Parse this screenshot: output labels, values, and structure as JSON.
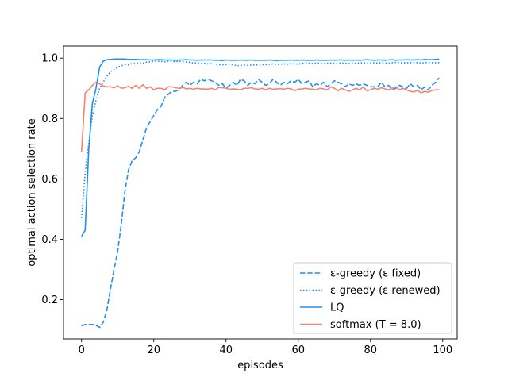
{
  "chart_data": {
    "type": "line",
    "title": "",
    "xlabel": "episodes",
    "ylabel": "optimal action selection rate",
    "xlim": [
      -5,
      104
    ],
    "ylim": [
      0.07,
      1.04
    ],
    "xticks": [
      0,
      20,
      40,
      60,
      80,
      100
    ],
    "yticks": [
      0.2,
      0.4,
      0.6,
      0.8,
      1.0
    ],
    "xtick_labels": [
      "0",
      "20",
      "40",
      "60",
      "80",
      "100"
    ],
    "ytick_labels": [
      "0.2",
      "0.4",
      "0.6",
      "0.8",
      "1.0"
    ],
    "legend_position": "lower-right",
    "series": [
      {
        "name": "ε-greedy (ε fixed)",
        "color": "#1f8ff0",
        "style": "dashed",
        "x": [
          0,
          1,
          2,
          3,
          4,
          5,
          6,
          7,
          8,
          9,
          10,
          11,
          12,
          13,
          14,
          15,
          16,
          17,
          18,
          19,
          20,
          21,
          22,
          23,
          24,
          25,
          26,
          27,
          28,
          29,
          30,
          31,
          32,
          33,
          34,
          35,
          36,
          37,
          38,
          39,
          40,
          41,
          42,
          43,
          44,
          45,
          46,
          47,
          48,
          49,
          50,
          51,
          52,
          53,
          54,
          55,
          56,
          57,
          58,
          59,
          60,
          61,
          62,
          63,
          64,
          65,
          66,
          67,
          68,
          69,
          70,
          71,
          72,
          73,
          74,
          75,
          76,
          77,
          78,
          79,
          80,
          81,
          82,
          83,
          84,
          85,
          86,
          87,
          88,
          89,
          90,
          91,
          92,
          93,
          94,
          95,
          96,
          97,
          98,
          99
        ],
        "y": [
          0.113,
          0.118,
          0.118,
          0.118,
          0.115,
          0.108,
          0.125,
          0.165,
          0.235,
          0.3,
          0.36,
          0.45,
          0.56,
          0.63,
          0.66,
          0.67,
          0.69,
          0.73,
          0.77,
          0.79,
          0.81,
          0.83,
          0.84,
          0.87,
          0.88,
          0.89,
          0.89,
          0.895,
          0.91,
          0.92,
          0.91,
          0.92,
          0.915,
          0.93,
          0.925,
          0.93,
          0.925,
          0.92,
          0.91,
          0.915,
          0.9,
          0.91,
          0.92,
          0.91,
          0.93,
          0.925,
          0.91,
          0.92,
          0.915,
          0.93,
          0.92,
          0.91,
          0.915,
          0.93,
          0.92,
          0.91,
          0.92,
          0.915,
          0.925,
          0.92,
          0.93,
          0.915,
          0.92,
          0.925,
          0.905,
          0.915,
          0.91,
          0.92,
          0.905,
          0.915,
          0.925,
          0.92,
          0.915,
          0.905,
          0.915,
          0.91,
          0.915,
          0.91,
          0.915,
          0.91,
          0.905,
          0.905,
          0.905,
          0.92,
          0.905,
          0.91,
          0.895,
          0.9,
          0.91,
          0.905,
          0.9,
          0.915,
          0.905,
          0.91,
          0.895,
          0.905,
          0.895,
          0.91,
          0.92,
          0.935
        ]
      },
      {
        "name": "ε-greedy (ε renewed)",
        "color": "#1f8ff0",
        "style": "dotted",
        "x": [
          0,
          1,
          2,
          3,
          4,
          5,
          6,
          7,
          8,
          9,
          10,
          11,
          12,
          13,
          14,
          15,
          16,
          17,
          18,
          19,
          20,
          21,
          22,
          23,
          24,
          25,
          26,
          27,
          28,
          29,
          30,
          31,
          32,
          33,
          34,
          35,
          36,
          37,
          38,
          39,
          40,
          41,
          42,
          43,
          44,
          45,
          46,
          47,
          48,
          49,
          50,
          51,
          52,
          53,
          54,
          55,
          56,
          57,
          58,
          59,
          60,
          61,
          62,
          63,
          64,
          65,
          66,
          67,
          68,
          69,
          70,
          71,
          72,
          73,
          74,
          75,
          76,
          77,
          78,
          79,
          80,
          81,
          82,
          83,
          84,
          85,
          86,
          87,
          88,
          89,
          90,
          91,
          92,
          93,
          94,
          95,
          96,
          97,
          98,
          99
        ],
        "y": [
          0.47,
          0.62,
          0.72,
          0.81,
          0.86,
          0.9,
          0.92,
          0.94,
          0.955,
          0.962,
          0.97,
          0.975,
          0.978,
          0.978,
          0.982,
          0.982,
          0.985,
          0.983,
          0.987,
          0.988,
          0.99,
          0.99,
          0.99,
          0.988,
          0.99,
          0.99,
          0.988,
          0.99,
          0.988,
          0.987,
          0.986,
          0.984,
          0.985,
          0.982,
          0.983,
          0.981,
          0.982,
          0.98,
          0.978,
          0.978,
          0.979,
          0.98,
          0.978,
          0.975,
          0.976,
          0.977,
          0.976,
          0.977,
          0.978,
          0.977,
          0.978,
          0.979,
          0.98,
          0.981,
          0.979,
          0.98,
          0.981,
          0.98,
          0.982,
          0.981,
          0.98,
          0.982,
          0.984,
          0.983,
          0.982,
          0.984,
          0.983,
          0.982,
          0.983,
          0.984,
          0.982,
          0.983,
          0.984,
          0.983,
          0.982,
          0.984,
          0.983,
          0.984,
          0.985,
          0.983,
          0.984,
          0.985,
          0.984,
          0.985,
          0.984,
          0.983,
          0.985,
          0.986,
          0.985,
          0.984,
          0.985,
          0.985,
          0.986,
          0.985,
          0.984,
          0.985,
          0.986,
          0.985,
          0.985,
          0.985
        ]
      },
      {
        "name": "LQ",
        "color": "#1f8ff0",
        "style": "solid",
        "x": [
          0,
          1,
          2,
          3,
          4,
          5,
          6,
          7,
          8,
          9,
          10,
          11,
          12,
          13,
          14,
          15,
          16,
          17,
          18,
          19,
          20,
          21,
          22,
          23,
          24,
          25,
          26,
          27,
          28,
          29,
          30,
          31,
          32,
          33,
          34,
          35,
          36,
          37,
          38,
          39,
          40,
          41,
          42,
          43,
          44,
          45,
          46,
          47,
          48,
          49,
          50,
          51,
          52,
          53,
          54,
          55,
          56,
          57,
          58,
          59,
          60,
          61,
          62,
          63,
          64,
          65,
          66,
          67,
          68,
          69,
          70,
          71,
          72,
          73,
          74,
          75,
          76,
          77,
          78,
          79,
          80,
          81,
          82,
          83,
          84,
          85,
          86,
          87,
          88,
          89,
          90,
          91,
          92,
          93,
          94,
          95,
          96,
          97,
          98,
          99
        ],
        "y": [
          0.41,
          0.43,
          0.7,
          0.85,
          0.9,
          0.97,
          0.99,
          0.995,
          0.996,
          0.997,
          0.997,
          0.997,
          0.997,
          0.996,
          0.996,
          0.996,
          0.995,
          0.995,
          0.995,
          0.994,
          0.994,
          0.995,
          0.995,
          0.994,
          0.994,
          0.994,
          0.993,
          0.994,
          0.994,
          0.995,
          0.994,
          0.994,
          0.993,
          0.994,
          0.994,
          0.994,
          0.994,
          0.993,
          0.993,
          0.992,
          0.994,
          0.993,
          0.993,
          0.993,
          0.994,
          0.993,
          0.993,
          0.994,
          0.993,
          0.993,
          0.993,
          0.993,
          0.994,
          0.993,
          0.992,
          0.993,
          0.993,
          0.993,
          0.994,
          0.993,
          0.993,
          0.994,
          0.993,
          0.993,
          0.993,
          0.994,
          0.993,
          0.993,
          0.993,
          0.994,
          0.993,
          0.994,
          0.994,
          0.993,
          0.994,
          0.993,
          0.994,
          0.993,
          0.994,
          0.995,
          0.994,
          0.993,
          0.994,
          0.994,
          0.993,
          0.994,
          0.995,
          0.993,
          0.994,
          0.994,
          0.995,
          0.994,
          0.994,
          0.995,
          0.994,
          0.996,
          0.995,
          0.995,
          0.996,
          0.997
        ]
      },
      {
        "name": "softmax (T = 8.0)",
        "color": "#f7836f",
        "style": "solid",
        "x": [
          0,
          1,
          2,
          3,
          4,
          5,
          6,
          7,
          8,
          9,
          10,
          11,
          12,
          13,
          14,
          15,
          16,
          17,
          18,
          19,
          20,
          21,
          22,
          23,
          24,
          25,
          26,
          27,
          28,
          29,
          30,
          31,
          32,
          33,
          34,
          35,
          36,
          37,
          38,
          39,
          40,
          41,
          42,
          43,
          44,
          45,
          46,
          47,
          48,
          49,
          50,
          51,
          52,
          53,
          54,
          55,
          56,
          57,
          58,
          59,
          60,
          61,
          62,
          63,
          64,
          65,
          66,
          67,
          68,
          69,
          70,
          71,
          72,
          73,
          74,
          75,
          76,
          77,
          78,
          79,
          80,
          81,
          82,
          83,
          84,
          85,
          86,
          87,
          88,
          89,
          90,
          91,
          92,
          93,
          94,
          95,
          96,
          97,
          98,
          99
        ],
        "y": [
          0.69,
          0.885,
          0.895,
          0.91,
          0.92,
          0.915,
          0.908,
          0.905,
          0.905,
          0.902,
          0.908,
          0.9,
          0.902,
          0.907,
          0.9,
          0.91,
          0.9,
          0.912,
          0.9,
          0.905,
          0.895,
          0.9,
          0.9,
          0.895,
          0.905,
          0.905,
          0.902,
          0.9,
          0.903,
          0.898,
          0.9,
          0.897,
          0.9,
          0.898,
          0.898,
          0.897,
          0.9,
          0.895,
          0.903,
          0.902,
          0.9,
          0.897,
          0.898,
          0.897,
          0.895,
          0.9,
          0.9,
          0.902,
          0.898,
          0.897,
          0.9,
          0.895,
          0.9,
          0.897,
          0.898,
          0.899,
          0.897,
          0.9,
          0.898,
          0.892,
          0.897,
          0.898,
          0.9,
          0.898,
          0.897,
          0.895,
          0.9,
          0.898,
          0.895,
          0.905,
          0.9,
          0.892,
          0.9,
          0.895,
          0.89,
          0.895,
          0.9,
          0.895,
          0.905,
          0.892,
          0.895,
          0.9,
          0.897,
          0.902,
          0.898,
          0.895,
          0.9,
          0.905,
          0.895,
          0.9,
          0.895,
          0.89,
          0.888,
          0.893,
          0.885,
          0.89,
          0.887,
          0.893,
          0.895,
          0.895
        ]
      }
    ]
  }
}
